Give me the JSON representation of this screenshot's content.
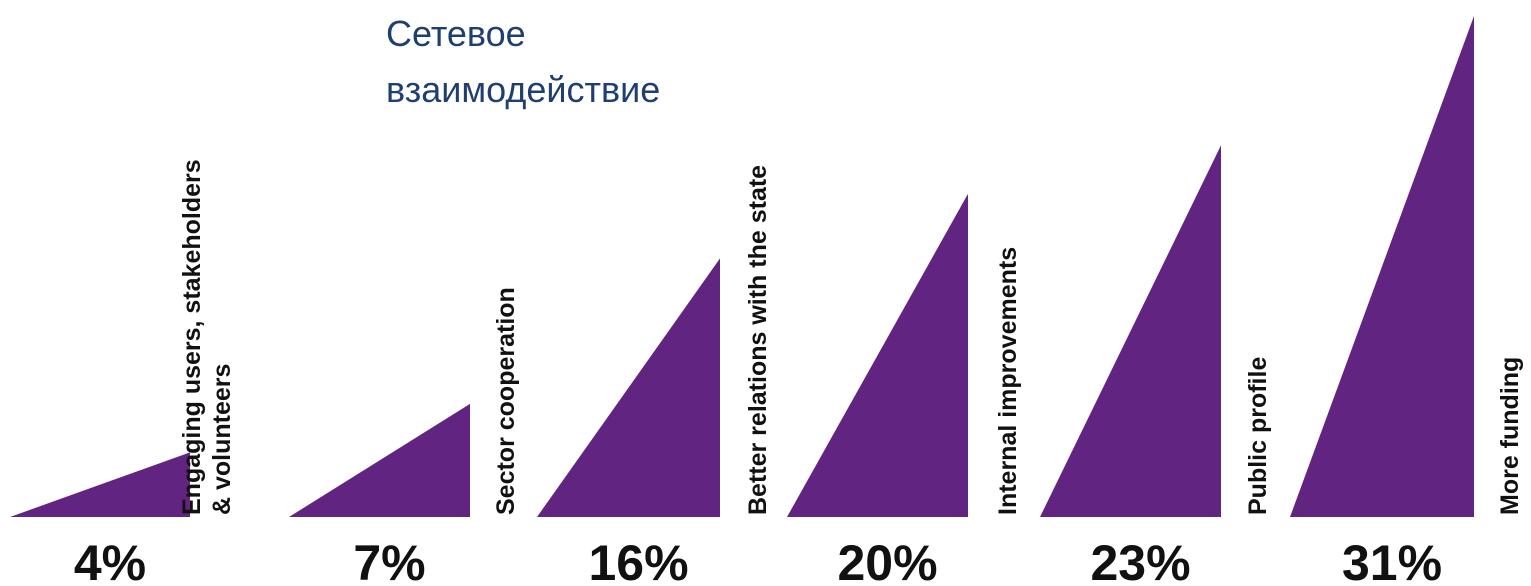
{
  "overlay_title": {
    "line1": "Сетевое",
    "line2": "взаимодействие"
  },
  "colors": {
    "triangle_fill": "#612481",
    "value_text": "#111111",
    "label_text": "#111111",
    "overlay_text": "#1f3f70"
  },
  "chart_data": {
    "type": "bar",
    "mark_shape": "right-triangle",
    "categories": [
      "Engaging users, stakeholders & volunteers",
      "Sector cooperation",
      "Better relations with the state",
      "Internal improvements",
      "Public profile",
      "More funding"
    ],
    "category_label_lines": [
      [
        "Engaging users, stakeholders",
        "& volunteers"
      ],
      [
        "Sector cooperation"
      ],
      [
        "Better relations with the state"
      ],
      [
        "Internal improvements"
      ],
      [
        "Public profile"
      ],
      [
        "More funding"
      ]
    ],
    "values": [
      4,
      7,
      16,
      20,
      23,
      31
    ],
    "value_labels": [
      "4%",
      "7%",
      "16%",
      "20%",
      "23%",
      "31%"
    ],
    "ylim": [
      0,
      31
    ],
    "grid": false,
    "legend": "none",
    "title": "",
    "xlabel": "",
    "ylabel": ""
  }
}
